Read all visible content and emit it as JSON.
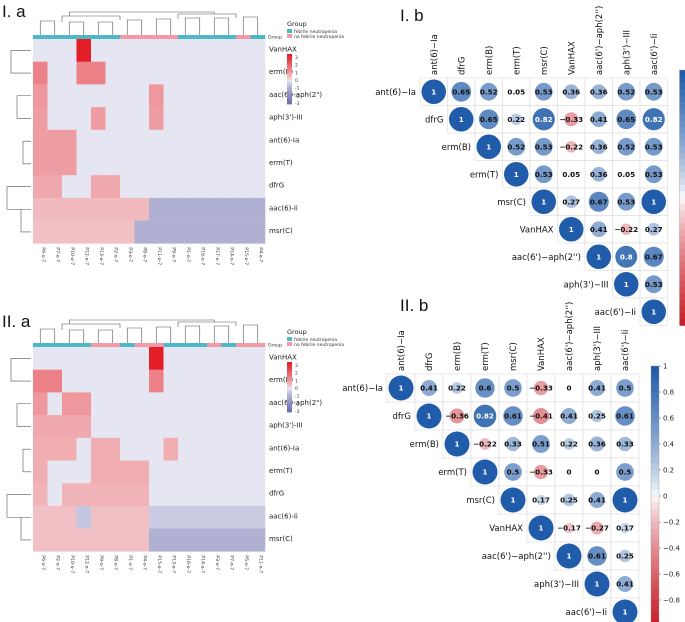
{
  "chart_data": [
    {
      "panel_label": "I. a",
      "type": "heatmap",
      "rows": [
        "VanHAX",
        "erm(B)",
        "aac(6')-aph(2\")",
        "aph(3')-III",
        "ant(6)-Ia",
        "erm(T)",
        "dfrG",
        "aac(6)-Ii",
        "msr(C)"
      ],
      "columns": [
        "P6-o-7",
        "P7-o-7",
        "P10-o-7",
        "P12-o-7",
        "P13-o-7",
        "P2-o-7",
        "P3-o-7",
        "P8-o-7",
        "P11-o-7",
        "P9-o-7",
        "P1-o-7",
        "P16-o-7",
        "P17-o-7",
        "P14-o-7",
        "P15-o-7",
        "P4-o-7"
      ],
      "column_group": [
        "febrile",
        "febrile",
        "febrile",
        "febrile",
        "febrile",
        "febrile",
        "non",
        "non",
        "non",
        "non",
        "febrile",
        "febrile",
        "febrile",
        "febrile",
        "non",
        "febrile"
      ],
      "values": [
        [
          -0.3,
          -0.3,
          -0.3,
          3.5,
          -0.3,
          -0.3,
          -0.3,
          -0.3,
          -0.3,
          -0.3,
          -0.3,
          -0.3,
          -0.3,
          -0.3,
          -0.3,
          -0.3
        ],
        [
          1.6,
          -0.3,
          -0.3,
          1.6,
          1.6,
          -0.3,
          -0.3,
          -0.3,
          -0.3,
          -0.3,
          -0.3,
          -0.3,
          -0.3,
          -0.3,
          -0.3,
          -0.3
        ],
        [
          1.2,
          -0.3,
          -0.3,
          -0.3,
          -0.3,
          -0.3,
          -0.3,
          -0.3,
          1.2,
          -0.3,
          -0.3,
          -0.3,
          -0.3,
          -0.3,
          -0.3,
          -0.3
        ],
        [
          1.1,
          -0.3,
          -0.3,
          -0.3,
          1.1,
          -0.3,
          -0.3,
          -0.3,
          1.1,
          -0.3,
          -0.3,
          -0.3,
          -0.3,
          -0.3,
          -0.3,
          -0.3
        ],
        [
          1.1,
          1.1,
          1.1,
          -0.3,
          -0.3,
          -0.3,
          -0.3,
          -0.3,
          -0.3,
          -0.3,
          -0.3,
          -0.3,
          -0.3,
          -0.3,
          -0.3,
          -0.3
        ],
        [
          1.1,
          1.1,
          1.1,
          -0.3,
          -0.3,
          -0.3,
          -0.3,
          -0.3,
          -0.3,
          -0.3,
          -0.3,
          -0.3,
          -0.3,
          -0.3,
          -0.3,
          -0.3
        ],
        [
          0.9,
          0.9,
          -0.3,
          -0.3,
          0.9,
          0.9,
          -0.3,
          -0.3,
          -0.3,
          -0.3,
          -0.3,
          -0.3,
          -0.3,
          -0.3,
          -0.3,
          -0.3
        ],
        [
          0.6,
          0.6,
          0.6,
          0.6,
          0.6,
          0.6,
          0.6,
          0.6,
          -1,
          -1,
          -1,
          -1,
          -1,
          -1,
          -1,
          -1
        ],
        [
          0.5,
          0.5,
          0.5,
          0.5,
          0.5,
          0.5,
          0.5,
          -1,
          -1,
          -1,
          -1,
          -1,
          -1,
          -1,
          -1,
          -1
        ]
      ],
      "legend": {
        "title": "Group",
        "items": [
          "febrile neutropenia",
          "no febrile neutropenia"
        ],
        "colors": [
          "#4db8c8",
          "#f29aa5"
        ]
      },
      "scale_ticks": [
        "3",
        "2",
        "1",
        "0",
        "-1",
        "-2",
        "-3"
      ],
      "vmin": -3,
      "vmax": 3
    },
    {
      "panel_label": "II. a",
      "type": "heatmap",
      "rows": [
        "VanHAX",
        "erm(B)",
        "aac(6')-aph(2\")",
        "aph(3')-III",
        "ant(6)-Ia",
        "erm(T)",
        "dfrG",
        "aac(6)-Ii",
        "msr(C)"
      ],
      "columns": [
        "P6-o-7",
        "P2-o-7",
        "P10-o-7",
        "P12-o-7",
        "P9-o-7",
        "P8-o-7",
        "P1-o-7",
        "P4-o-7",
        "P15-o-7",
        "P13-o-7",
        "P16-o-7",
        "P14-o-7",
        "P3-o-7",
        "P7-o-7",
        "P5-o-7",
        "P11-o-7"
      ],
      "column_group": [
        "febrile",
        "febrile",
        "febrile",
        "febrile",
        "non",
        "non",
        "febrile",
        "non",
        "non",
        "febrile",
        "febrile",
        "febrile",
        "non",
        "febrile",
        "non",
        "non"
      ],
      "values": [
        [
          -0.3,
          -0.3,
          -0.3,
          -0.3,
          -0.3,
          -0.3,
          -0.3,
          -0.3,
          3.5,
          -0.3,
          -0.3,
          -0.3,
          -0.3,
          -0.3,
          -0.3,
          -0.3
        ],
        [
          1.6,
          1.6,
          -0.3,
          -0.3,
          -0.3,
          -0.3,
          -0.3,
          -0.3,
          1.6,
          -0.3,
          -0.3,
          -0.3,
          -0.3,
          -0.3,
          -0.3,
          -0.3
        ],
        [
          1.2,
          -0.3,
          1.2,
          1.2,
          -0.3,
          -0.3,
          -0.3,
          -0.3,
          -0.3,
          -0.3,
          -0.3,
          -0.3,
          -0.3,
          -0.3,
          -0.3,
          -0.3
        ],
        [
          0.9,
          0.9,
          0.9,
          0.9,
          -0.3,
          -0.3,
          -0.3,
          -0.3,
          -0.3,
          -0.3,
          -0.3,
          -0.3,
          -0.3,
          -0.3,
          -0.3,
          -0.3
        ],
        [
          0.8,
          0.8,
          0.8,
          -0.3,
          0.8,
          0.8,
          -0.3,
          -0.3,
          -0.3,
          0.8,
          -0.3,
          -0.3,
          -0.3,
          -0.3,
          -0.3,
          -0.3
        ],
        [
          0.8,
          -0.3,
          -0.3,
          -0.3,
          0.8,
          0.8,
          0.8,
          0.8,
          -0.3,
          -0.3,
          -0.3,
          -0.3,
          -0.3,
          -0.3,
          -0.3,
          -0.3
        ],
        [
          0.7,
          -0.3,
          0.7,
          0.7,
          0.7,
          0.7,
          0.7,
          0.7,
          -0.3,
          -0.3,
          -0.3,
          -0.3,
          -0.3,
          -0.3,
          -0.3,
          -0.3
        ],
        [
          0.5,
          0.5,
          0.5,
          -0.5,
          0.5,
          0.5,
          0.5,
          0.5,
          -0.4,
          -0.4,
          -0.4,
          -0.4,
          -0.4,
          -0.4,
          -0.4,
          -0.4
        ],
        [
          0.5,
          0.5,
          0.5,
          0.5,
          0.5,
          0.5,
          0.5,
          0.5,
          -1,
          -1,
          -1,
          -1,
          -1,
          -1,
          -1,
          -1
        ]
      ],
      "legend": {
        "title": "Group",
        "items": [
          "febrile neutropenia",
          "no febrile neutropenia"
        ],
        "colors": [
          "#4db8c8",
          "#f29aa5"
        ]
      },
      "scale_ticks": [
        "3",
        "2",
        "1",
        "0",
        "-1",
        "-2",
        "-3"
      ],
      "vmin": -3,
      "vmax": 3
    },
    {
      "panel_label": "I. b",
      "type": "correlation",
      "labels": [
        "ant(6)−Ia",
        "dfrG",
        "erm(B)",
        "erm(T)",
        "msr(C)",
        "VanHAX",
        "aac(6')−aph(2'')",
        "aph(3')−III",
        "aac(6')−Ii"
      ],
      "matrix": [
        [
          1,
          0.65,
          0.52,
          0.05,
          0.53,
          0.36,
          0.36,
          0.52,
          0.53
        ],
        [
          null,
          1,
          0.65,
          0.22,
          0.82,
          -0.33,
          0.41,
          0.65,
          0.82
        ],
        [
          null,
          null,
          1,
          0.52,
          0.53,
          -0.22,
          0.36,
          0.52,
          0.53
        ],
        [
          null,
          null,
          null,
          1,
          0.53,
          0.05,
          0.36,
          0.05,
          0.53
        ],
        [
          null,
          null,
          null,
          null,
          1,
          0.27,
          0.67,
          0.53,
          1
        ],
        [
          null,
          null,
          null,
          null,
          null,
          1,
          0.41,
          -0.22,
          0.27
        ],
        [
          null,
          null,
          null,
          null,
          null,
          null,
          1,
          0.8,
          0.67
        ],
        [
          null,
          null,
          null,
          null,
          null,
          null,
          null,
          1,
          0.53
        ],
        [
          null,
          null,
          null,
          null,
          null,
          null,
          null,
          null,
          1
        ]
      ],
      "colorbar_ticks": [
        "1",
        "0.8",
        "0.6",
        "0.4",
        "0.2",
        "0",
        "−0.2",
        "−0.4",
        "−0.6",
        "−0.8",
        "−1"
      ]
    },
    {
      "panel_label": "II. b",
      "type": "correlation",
      "labels": [
        "ant(6)−Ia",
        "dfrG",
        "erm(B)",
        "erm(T)",
        "msr(C)",
        "VanHAX",
        "aac(6')−aph(2'')",
        "aph(3')−III",
        "aac(6')−Ii"
      ],
      "matrix": [
        [
          1,
          0.41,
          0.22,
          0.6,
          0.5,
          -0.33,
          0,
          0.41,
          0.5
        ],
        [
          null,
          1,
          -0.36,
          0.82,
          0.61,
          -0.41,
          0.41,
          0.25,
          0.61
        ],
        [
          null,
          null,
          1,
          -0.22,
          0.33,
          0.51,
          0.22,
          0.36,
          0.33
        ],
        [
          null,
          null,
          null,
          1,
          0.5,
          -0.33,
          0,
          0,
          0.5
        ],
        [
          null,
          null,
          null,
          null,
          1,
          0.17,
          0.25,
          0.41,
          1
        ],
        [
          null,
          null,
          null,
          null,
          null,
          1,
          -0.17,
          -0.27,
          0.17
        ],
        [
          null,
          null,
          null,
          null,
          null,
          null,
          1,
          0.61,
          0.25
        ],
        [
          null,
          null,
          null,
          null,
          null,
          null,
          null,
          1,
          0.41
        ],
        [
          null,
          null,
          null,
          null,
          null,
          null,
          null,
          null,
          1
        ]
      ],
      "colorbar_ticks": [
        "1",
        "0.8",
        "0.6",
        "0.4",
        "0.2",
        "0",
        "−0.2",
        "−0.4",
        "−0.6",
        "−0.8",
        "−1"
      ]
    }
  ]
}
